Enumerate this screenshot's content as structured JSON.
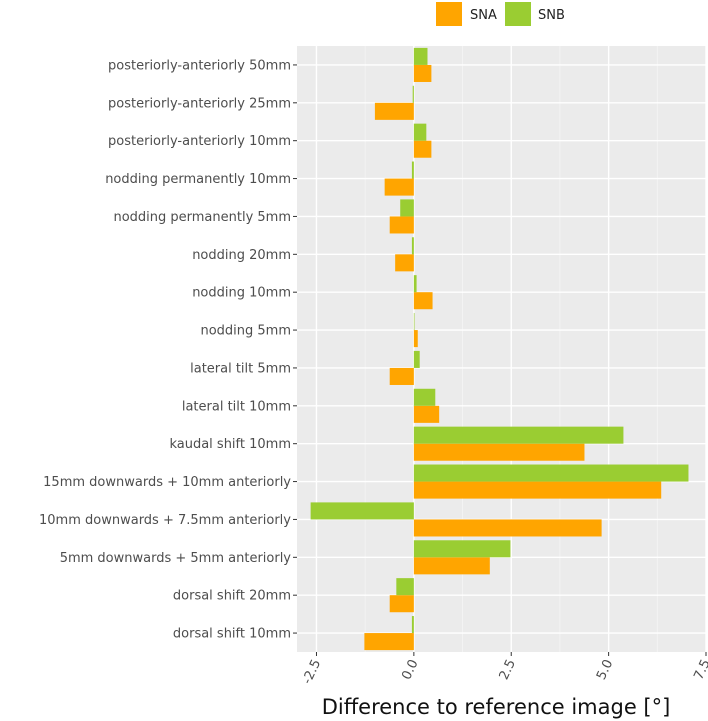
{
  "chart_data": {
    "type": "bar",
    "orientation": "horizontal",
    "title": "",
    "xlabel": "Difference to reference image [°]",
    "ylabel": "",
    "xlim": [
      -3.0,
      7.5
    ],
    "xticks": [
      -2.5,
      0.0,
      2.5,
      5.0,
      7.5
    ],
    "xtick_labels": [
      "-2.5",
      "0.0",
      "2.5",
      "5.0",
      "7.5"
    ],
    "grid": true,
    "legend_position": "top",
    "categories": [
      "posteriorly-anteriorly 50mm",
      "posteriorly-anteriorly 25mm",
      "posteriorly-anteriorly 10mm",
      "nodding permanently 10mm",
      "nodding permanently 5mm",
      "nodding 20mm",
      "nodding 10mm",
      "nodding 5mm",
      "lateral tilt 5mm",
      "lateral tilt 10mm",
      "kaudal shift 10mm",
      "15mm downwards + 10mm anteriorly",
      "10mm downwards + 7.5mm anteriorly",
      "5mm downwards + 5mm anteriorly",
      "dorsal shift 20mm",
      "dorsal shift 10mm"
    ],
    "series": [
      {
        "name": "SNA",
        "color": "#ffa500",
        "values": [
          0.45,
          -1.0,
          0.45,
          -0.75,
          -0.62,
          -0.48,
          0.48,
          0.1,
          -0.62,
          0.65,
          4.38,
          6.35,
          4.82,
          1.95,
          -0.62,
          -1.27
        ]
      },
      {
        "name": "SNB",
        "color": "#9acd32",
        "values": [
          0.35,
          -0.03,
          0.32,
          -0.05,
          -0.35,
          -0.05,
          0.07,
          0.0,
          0.15,
          0.55,
          5.38,
          7.05,
          -2.65,
          2.48,
          -0.45,
          -0.05
        ]
      }
    ]
  }
}
